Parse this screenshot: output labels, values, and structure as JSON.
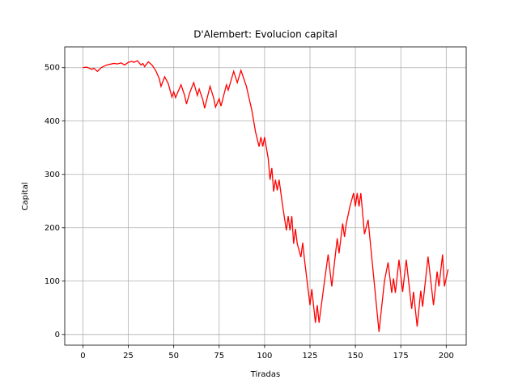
{
  "chart_data": {
    "type": "line",
    "title": "D'Alembert: Evolucion capital",
    "x_label": "Tiradas",
    "y_label": "Capital",
    "x": [
      0,
      2,
      5,
      6,
      8,
      10,
      13,
      17,
      19,
      21,
      23,
      25,
      27,
      28,
      30,
      32,
      33,
      34,
      36,
      38,
      40,
      42,
      43,
      45,
      47,
      49,
      50,
      51,
      54,
      56,
      57,
      59,
      61,
      63,
      64,
      66,
      67,
      70,
      72,
      73,
      75,
      76,
      79,
      80,
      83,
      85,
      87,
      90,
      93,
      95,
      97,
      98,
      99,
      100,
      102,
      103,
      104,
      105,
      106,
      107,
      108,
      110,
      112,
      113,
      114,
      115,
      116,
      117,
      118,
      120,
      121,
      122,
      125,
      126,
      128,
      129,
      130,
      133,
      135,
      137,
      140,
      141,
      143,
      144,
      145,
      147,
      149,
      150,
      151,
      152,
      153,
      155,
      157,
      160,
      163,
      166,
      168,
      170,
      171,
      172,
      174,
      176,
      178,
      181,
      182,
      184,
      186,
      187,
      190,
      193,
      195,
      196,
      198,
      199,
      201
    ],
    "series": [
      {
        "name": "Capital",
        "color": "#ff0000",
        "values": [
          500,
          501,
          497,
          499,
          493,
          500,
          505,
          508,
          507,
          509,
          505,
          510,
          512,
          510,
          513,
          505,
          508,
          502,
          511,
          505,
          495,
          480,
          465,
          483,
          470,
          445,
          455,
          444,
          468,
          448,
          432,
          455,
          472,
          448,
          460,
          440,
          424,
          465,
          443,
          426,
          442,
          428,
          468,
          458,
          493,
          472,
          495,
          465,
          420,
          380,
          352,
          370,
          352,
          370,
          330,
          290,
          312,
          268,
          290,
          270,
          290,
          240,
          195,
          222,
          195,
          222,
          170,
          198,
          170,
          145,
          172,
          140,
          55,
          85,
          22,
          55,
          22,
          100,
          150,
          90,
          180,
          152,
          208,
          183,
          208,
          240,
          265,
          240,
          265,
          240,
          265,
          188,
          215,
          110,
          5,
          100,
          135,
          78,
          105,
          78,
          140,
          80,
          140,
          48,
          80,
          15,
          82,
          52,
          146,
          55,
          118,
          90,
          150,
          90,
          122
        ]
      }
    ],
    "xlim": [
      -10,
      211
    ],
    "ylim": [
      -20,
      539
    ],
    "xticks": [
      0,
      25,
      50,
      75,
      100,
      125,
      150,
      175,
      200
    ],
    "yticks": [
      0,
      100,
      200,
      300,
      400,
      500
    ],
    "grid": true
  }
}
